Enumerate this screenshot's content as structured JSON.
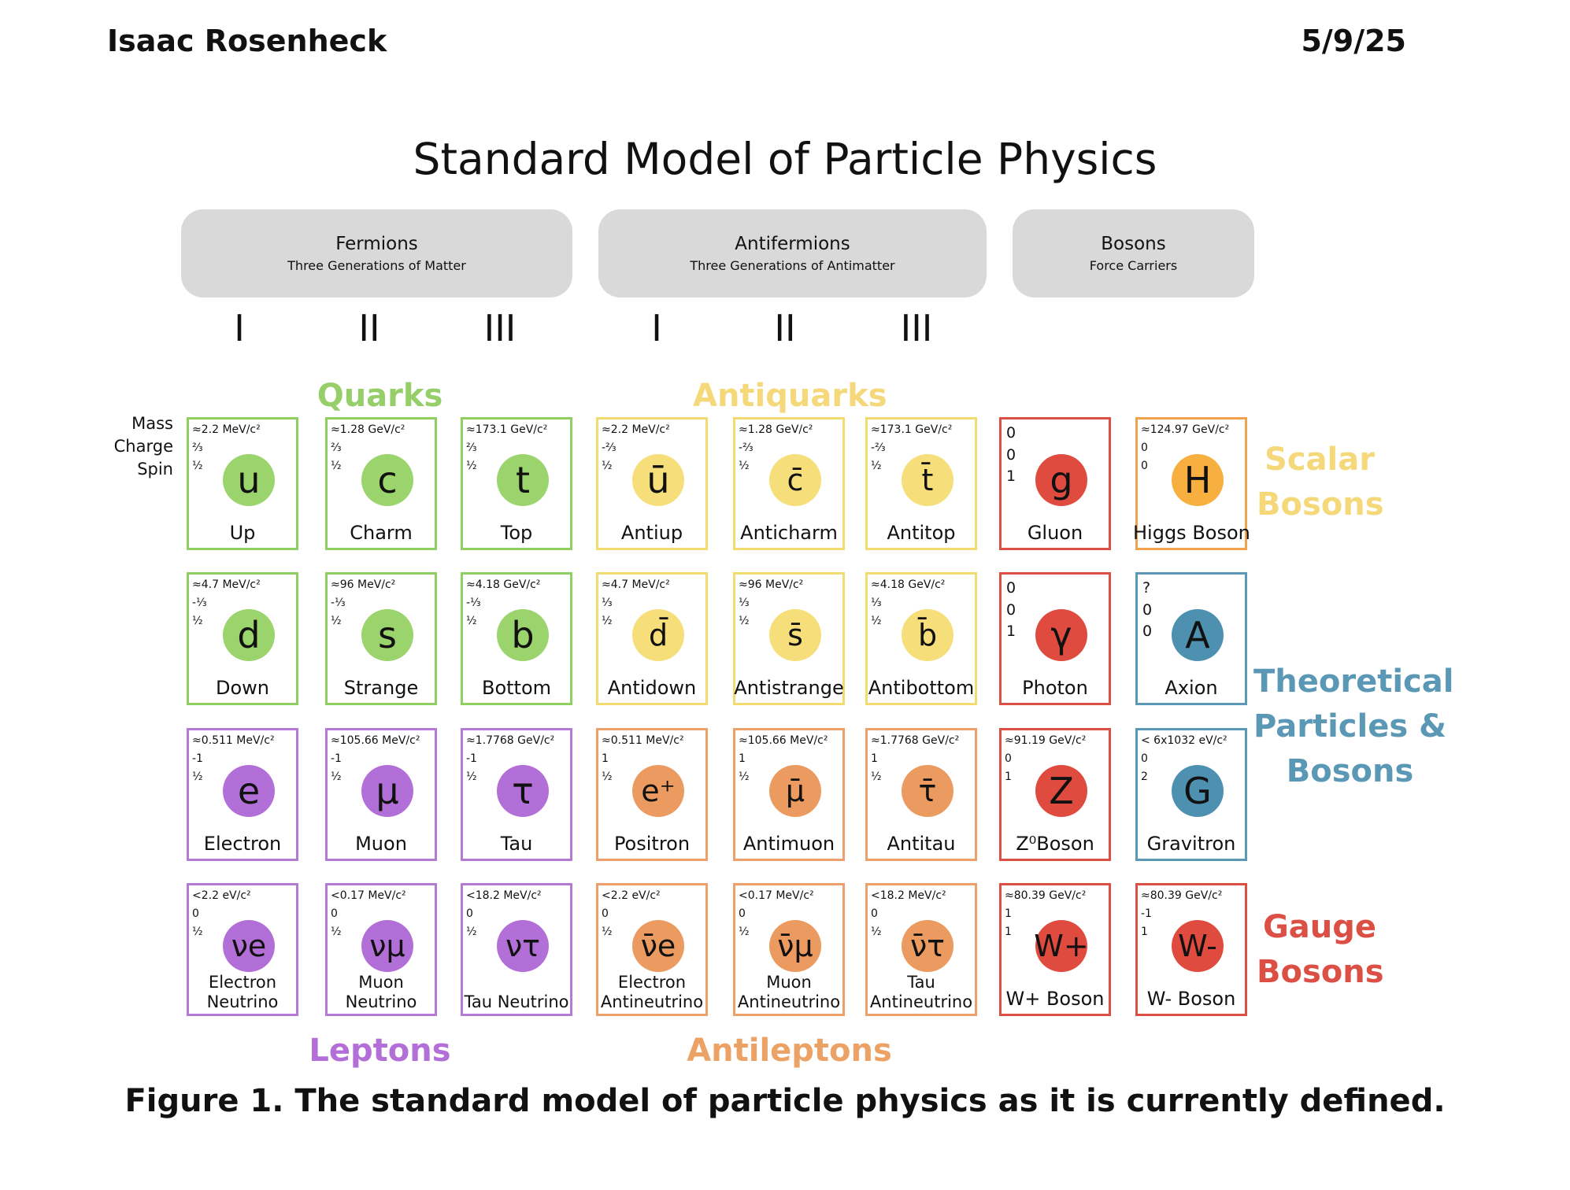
{
  "header": {
    "author": "Isaac Rosenheck",
    "date": "5/9/25"
  },
  "title": "Standard Model of Particle Physics",
  "groups": [
    {
      "name": "Fermions",
      "subtitle": "Three Generations of Matter"
    },
    {
      "name": "Antifermions",
      "subtitle": "Three Generations of Antimatter"
    },
    {
      "name": "Bosons",
      "subtitle": "Force Carriers"
    }
  ],
  "generations": [
    "I",
    "II",
    "III",
    "I",
    "II",
    "III"
  ],
  "row_labels": [
    "Mass",
    "Charge",
    "Spin"
  ],
  "categories": {
    "quarks": "Quarks",
    "antiquarks": "Antiquarks",
    "leptons": "Leptons",
    "antileptons": "Antileptons",
    "scalar": [
      "Scalar",
      "Bosons"
    ],
    "theoretical": [
      "Theoretical",
      "Particles &",
      "Bosons"
    ],
    "gauge": [
      "Gauge",
      "Bosons"
    ]
  },
  "colors": {
    "quark": "#9bd36d",
    "antiquark": "#f6df7a",
    "lepton": "#b36fd8",
    "antilepton": "#eb9b5f",
    "gauge": "#e04b3f",
    "theoretical": "#4e90b0",
    "higgs": "#f7b040",
    "quark_border": "#8fcf5f",
    "antiquark_border": "#f2dc6f",
    "lepton_border": "#b47ad6",
    "antilepton_border": "#eda069",
    "gauge_border": "#dc4f45",
    "theoretical_border": "#5a98b6",
    "higgs_border": "#f0a24e",
    "scalar_label": "#f4d87a",
    "theoretical_label": "#5a98b6",
    "gauge_label": "#dc4f45",
    "quarks_label": "#96cf6a",
    "antiquarks_label": "#f4d87a",
    "leptons_label": "#b36fd8",
    "antileptons_label": "#eca265"
  },
  "particles": [
    {
      "mass": "≈2.2 MeV/c²",
      "charge": "⅔",
      "spin": "½",
      "symbol": "u",
      "name": "Up",
      "type": "quark"
    },
    {
      "mass": "≈1.28 GeV/c²",
      "charge": "⅔",
      "spin": "½",
      "symbol": "c",
      "name": "Charm",
      "type": "quark"
    },
    {
      "mass": "≈173.1 GeV/c²",
      "charge": "⅔",
      "spin": "½",
      "symbol": "t",
      "name": "Top",
      "type": "quark"
    },
    {
      "mass": "≈2.2 MeV/c²",
      "charge": "-⅔",
      "spin": "½",
      "symbol": "ū",
      "name": "Antiup",
      "type": "antiquark"
    },
    {
      "mass": "≈1.28 GeV/c²",
      "charge": "-⅔",
      "spin": "½",
      "symbol": "c̄",
      "name": "Anticharm",
      "type": "antiquark"
    },
    {
      "mass": "≈173.1 GeV/c²",
      "charge": "-⅔",
      "spin": "½",
      "symbol": "t̄",
      "name": "Antitop",
      "type": "antiquark"
    },
    {
      "mass": "0",
      "charge": "0",
      "spin": "1",
      "symbol": "g",
      "name": "Gluon",
      "type": "gauge",
      "big": true
    },
    {
      "mass": "≈124.97 GeV/c²",
      "charge": "0",
      "spin": "0",
      "symbol": "H",
      "name": "Higgs Boson",
      "type": "higgs"
    },
    {
      "mass": "≈4.7 MeV/c²",
      "charge": "-⅓",
      "spin": "½",
      "symbol": "d",
      "name": "Down",
      "type": "quark"
    },
    {
      "mass": "≈96 MeV/c²",
      "charge": "-⅓",
      "spin": "½",
      "symbol": "s",
      "name": "Strange",
      "type": "quark"
    },
    {
      "mass": "≈4.18 GeV/c²",
      "charge": "-⅓",
      "spin": "½",
      "symbol": "b",
      "name": "Bottom",
      "type": "quark"
    },
    {
      "mass": "≈4.7 MeV/c²",
      "charge": "⅓",
      "spin": "½",
      "symbol": "d̄",
      "name": "Antidown",
      "type": "antiquark"
    },
    {
      "mass": "≈96 MeV/c²",
      "charge": "⅓",
      "spin": "½",
      "symbol": "s̄",
      "name": "Antistrange",
      "type": "antiquark"
    },
    {
      "mass": "≈4.18 GeV/c²",
      "charge": "⅓",
      "spin": "½",
      "symbol": "b̄",
      "name": "Antibottom",
      "type": "antiquark"
    },
    {
      "mass": "0",
      "charge": "0",
      "spin": "1",
      "symbol": "γ",
      "name": "Photon",
      "type": "gauge",
      "big": true
    },
    {
      "mass": "?",
      "charge": "0",
      "spin": "0",
      "symbol": "A",
      "name": "Axion",
      "type": "theoretical",
      "big": true
    },
    {
      "mass": "≈0.511 MeV/c²",
      "charge": "-1",
      "spin": "½",
      "symbol": "e",
      "name": "Electron",
      "type": "lepton"
    },
    {
      "mass": "≈105.66 MeV/c²",
      "charge": "-1",
      "spin": "½",
      "symbol": "μ",
      "name": "Muon",
      "type": "lepton"
    },
    {
      "mass": "≈1.7768 GeV/c²",
      "charge": "-1",
      "spin": "½",
      "symbol": "τ",
      "name": "Tau",
      "type": "lepton"
    },
    {
      "mass": "≈0.511 MeV/c²",
      "charge": "1",
      "spin": "½",
      "symbol": "e⁺",
      "name": "Positron",
      "type": "antilepton"
    },
    {
      "mass": "≈105.66 MeV/c²",
      "charge": "1",
      "spin": "½",
      "symbol": "μ̄",
      "name": "Antimuon",
      "type": "antilepton"
    },
    {
      "mass": "≈1.7768 GeV/c²",
      "charge": "1",
      "spin": "½",
      "symbol": "τ̄",
      "name": "Antitau",
      "type": "antilepton"
    },
    {
      "mass": "≈91.19 GeV/c²",
      "charge": "0",
      "spin": "1",
      "symbol": "Z",
      "name": "Z⁰Boson",
      "type": "gauge"
    },
    {
      "mass": "< 6x1032 eV/c²",
      "charge": "0",
      "spin": "2",
      "symbol": "G",
      "name": "Gravitron",
      "type": "theoretical"
    },
    {
      "mass": "<2.2 eV/c²",
      "charge": "0",
      "spin": "½",
      "symbol": "νe",
      "name": "Electron Neutrino",
      "type": "lepton"
    },
    {
      "mass": "<0.17 MeV/c²",
      "charge": "0",
      "spin": "½",
      "symbol": "νμ",
      "name": "Muon Neutrino",
      "type": "lepton"
    },
    {
      "mass": "<18.2 MeV/c²",
      "charge": "0",
      "spin": "½",
      "symbol": "ντ",
      "name": "Tau Neutrino",
      "type": "lepton"
    },
    {
      "mass": "<2.2 eV/c²",
      "charge": "0",
      "spin": "½",
      "symbol": "ν̄e",
      "name": "Electron Antineutrino",
      "type": "antilepton"
    },
    {
      "mass": "<0.17 MeV/c²",
      "charge": "0",
      "spin": "½",
      "symbol": "ν̄μ",
      "name": "Muon Antineutrino",
      "type": "antilepton"
    },
    {
      "mass": "<18.2 MeV/c²",
      "charge": "0",
      "spin": "½",
      "symbol": "ν̄τ",
      "name": "Tau Antineutrino",
      "type": "antilepton"
    },
    {
      "mass": "≈80.39 GeV/c²",
      "charge": "1",
      "spin": "1",
      "symbol": "W+",
      "name": "W+ Boson",
      "type": "gauge"
    },
    {
      "mass": "≈80.39 GeV/c²",
      "charge": "-1",
      "spin": "1",
      "symbol": "W-",
      "name": "W- Boson",
      "type": "gauge"
    }
  ],
  "caption": "Figure 1. The standard model of particle physics as it is currently defined."
}
